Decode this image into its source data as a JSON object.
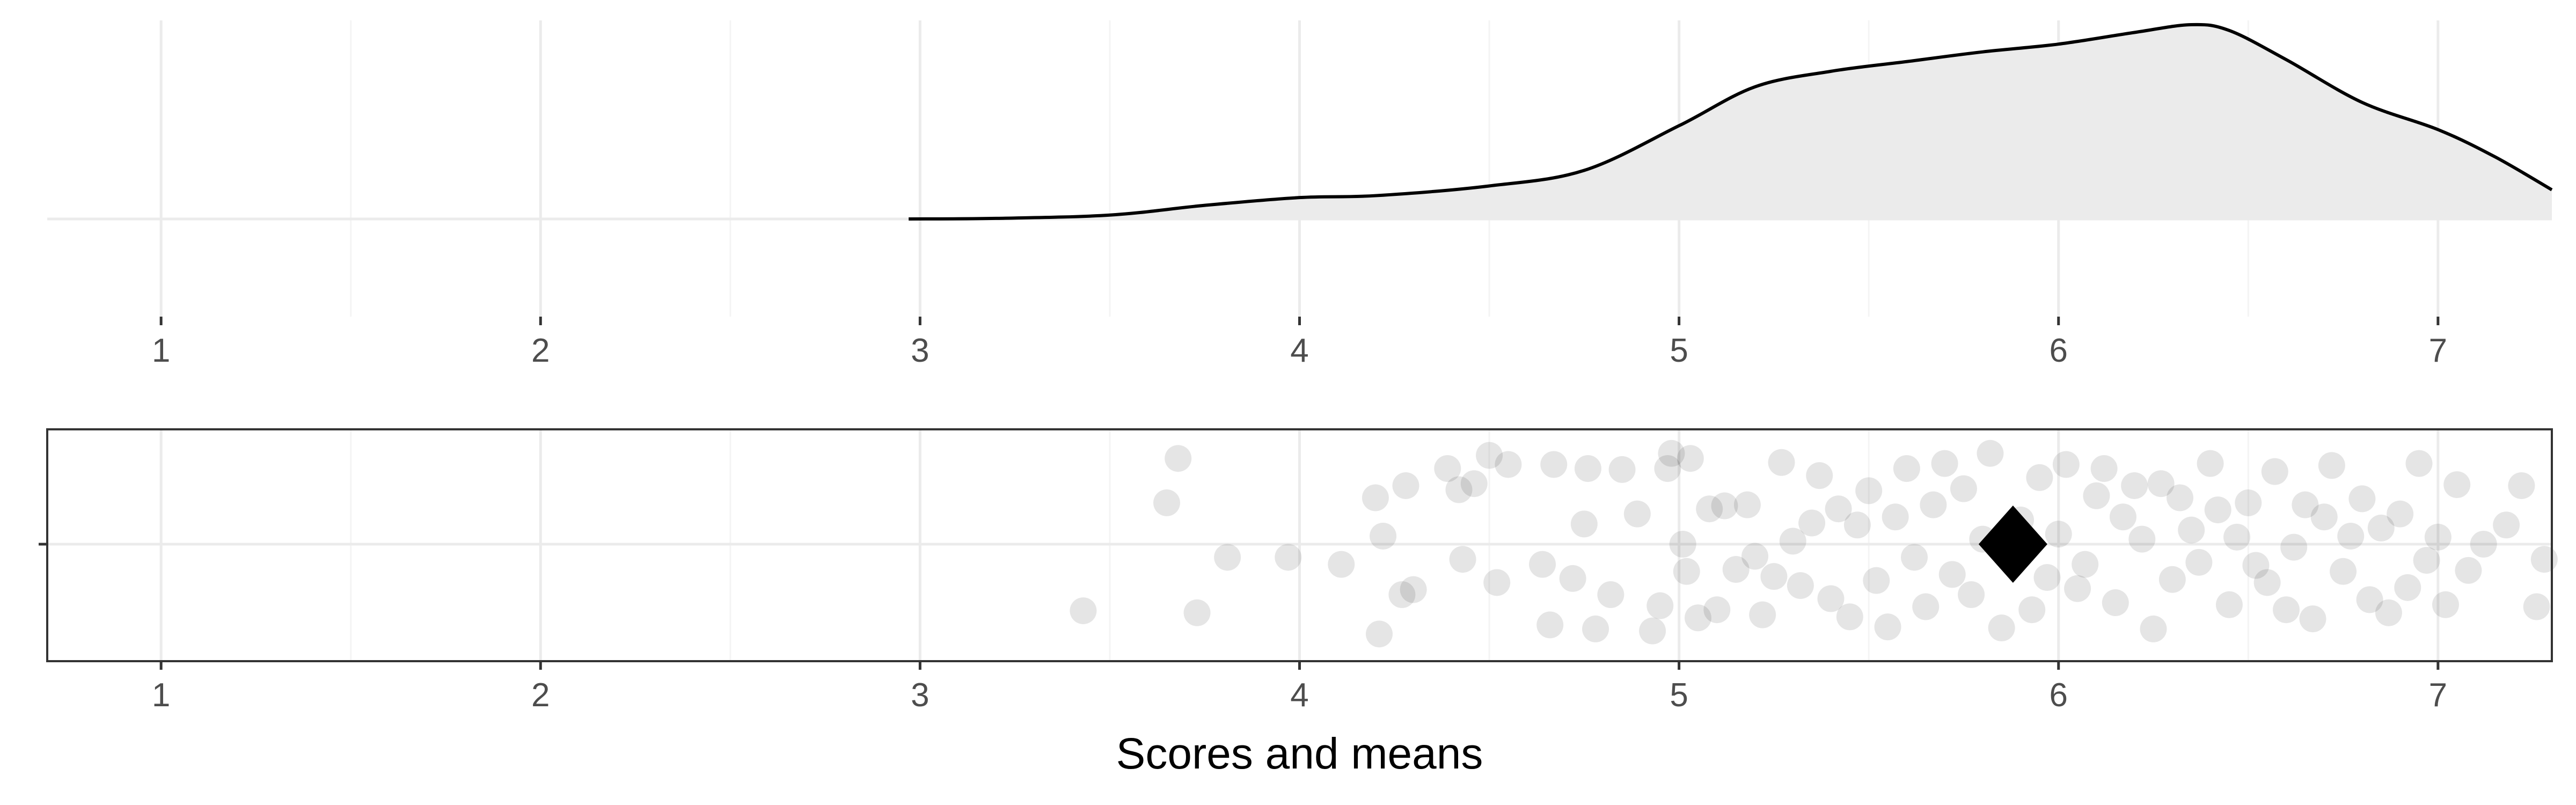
{
  "chart_data": [
    {
      "type": "area",
      "subtype": "density",
      "x_range": [
        0.7,
        7.3
      ],
      "x_ticks": [
        "1",
        "2",
        "3",
        "4",
        "5",
        "6",
        "7"
      ],
      "grid": true,
      "fill": "#ebebeb",
      "line_color": "#000000",
      "x": [
        2.97,
        3.2,
        3.5,
        3.75,
        4.0,
        4.2,
        4.5,
        4.75,
        5.0,
        5.2,
        5.4,
        5.6,
        5.8,
        6.0,
        6.2,
        6.35,
        6.45,
        6.6,
        6.8,
        7.0,
        7.15,
        7.3
      ],
      "y": [
        0.0,
        0.003,
        0.02,
        0.07,
        0.11,
        0.12,
        0.17,
        0.25,
        0.48,
        0.68,
        0.76,
        0.81,
        0.86,
        0.9,
        0.96,
        1.0,
        0.97,
        0.82,
        0.6,
        0.46,
        0.32,
        0.15
      ]
    },
    {
      "type": "scatter",
      "subtype": "jitter",
      "x_range": [
        0.7,
        7.3
      ],
      "x_ticks": [
        "1",
        "2",
        "3",
        "4",
        "5",
        "6",
        "7"
      ],
      "xlabel": "Scores and means",
      "grid": true,
      "point_color": "#000000",
      "point_opacity": 0.1,
      "x": [
        3.43,
        3.65,
        3.68,
        3.73,
        3.81,
        3.97,
        4.11,
        4.2,
        4.21,
        4.22,
        4.27,
        4.28,
        4.3,
        4.39,
        4.42,
        4.43,
        4.46,
        4.5,
        4.52,
        4.55,
        4.64,
        4.66,
        4.67,
        4.72,
        4.75,
        4.76,
        4.78,
        4.82,
        4.85,
        4.89,
        4.93,
        4.95,
        4.97,
        4.98,
        5.01,
        5.02,
        5.03,
        5.05,
        5.08,
        5.1,
        5.12,
        5.15,
        5.18,
        5.2,
        5.22,
        5.25,
        5.27,
        5.3,
        5.32,
        5.35,
        5.37,
        5.4,
        5.42,
        5.45,
        5.47,
        5.5,
        5.52,
        5.55,
        5.57,
        5.6,
        5.62,
        5.65,
        5.67,
        5.7,
        5.72,
        5.75,
        5.77,
        5.8,
        5.82,
        5.85,
        5.9,
        5.93,
        5.95,
        5.97,
        6.0,
        6.02,
        6.05,
        6.07,
        6.1,
        6.12,
        6.15,
        6.17,
        6.2,
        6.22,
        6.25,
        6.27,
        6.3,
        6.32,
        6.35,
        6.37,
        6.4,
        6.42,
        6.45,
        6.47,
        6.5,
        6.52,
        6.55,
        6.57,
        6.6,
        6.62,
        6.65,
        6.67,
        6.7,
        6.72,
        6.75,
        6.77,
        6.8,
        6.82,
        6.85,
        6.87,
        6.9,
        6.92,
        6.95,
        6.97,
        7.0,
        7.02,
        7.05,
        7.08,
        7.12,
        7.18,
        7.22,
        7.26,
        7.28
      ],
      "y": [
        -0.66,
        0.41,
        0.85,
        -0.68,
        -0.13,
        -0.13,
        -0.2,
        0.46,
        -0.89,
        0.08,
        -0.5,
        0.58,
        -0.45,
        0.75,
        0.54,
        -0.15,
        0.6,
        0.88,
        -0.38,
        0.79,
        -0.2,
        -0.8,
        0.79,
        -0.34,
        0.2,
        0.75,
        -0.84,
        -0.5,
        0.74,
        0.3,
        -0.86,
        -0.61,
        0.75,
        0.9,
        0.0,
        -0.27,
        0.85,
        -0.73,
        0.35,
        -0.65,
        0.38,
        -0.25,
        0.39,
        -0.12,
        -0.7,
        -0.32,
        0.81,
        0.03,
        -0.41,
        0.21,
        0.68,
        -0.54,
        0.35,
        -0.72,
        0.19,
        0.53,
        -0.36,
        -0.82,
        0.27,
        0.75,
        -0.13,
        -0.62,
        0.39,
        0.8,
        -0.3,
        0.55,
        -0.5,
        0.05,
        0.9,
        -0.83,
        0.24,
        -0.65,
        0.66,
        -0.33,
        0.1,
        0.79,
        -0.44,
        -0.2,
        0.48,
        0.75,
        -0.58,
        0.27,
        0.58,
        0.05,
        -0.84,
        0.6,
        -0.35,
        0.46,
        0.14,
        -0.18,
        0.8,
        0.34,
        -0.6,
        0.07,
        0.41,
        -0.21,
        -0.38,
        0.72,
        -0.65,
        -0.03,
        0.39,
        -0.74,
        0.27,
        0.78,
        -0.27,
        0.08,
        0.45,
        -0.55,
        0.16,
        -0.68,
        0.3,
        -0.43,
        0.8,
        -0.16,
        0.07,
        -0.6,
        0.59,
        -0.26,
        0.0,
        0.19,
        0.58,
        -0.62,
        -0.15
      ],
      "mean": 5.88,
      "mean_marker": "diamond"
    }
  ]
}
